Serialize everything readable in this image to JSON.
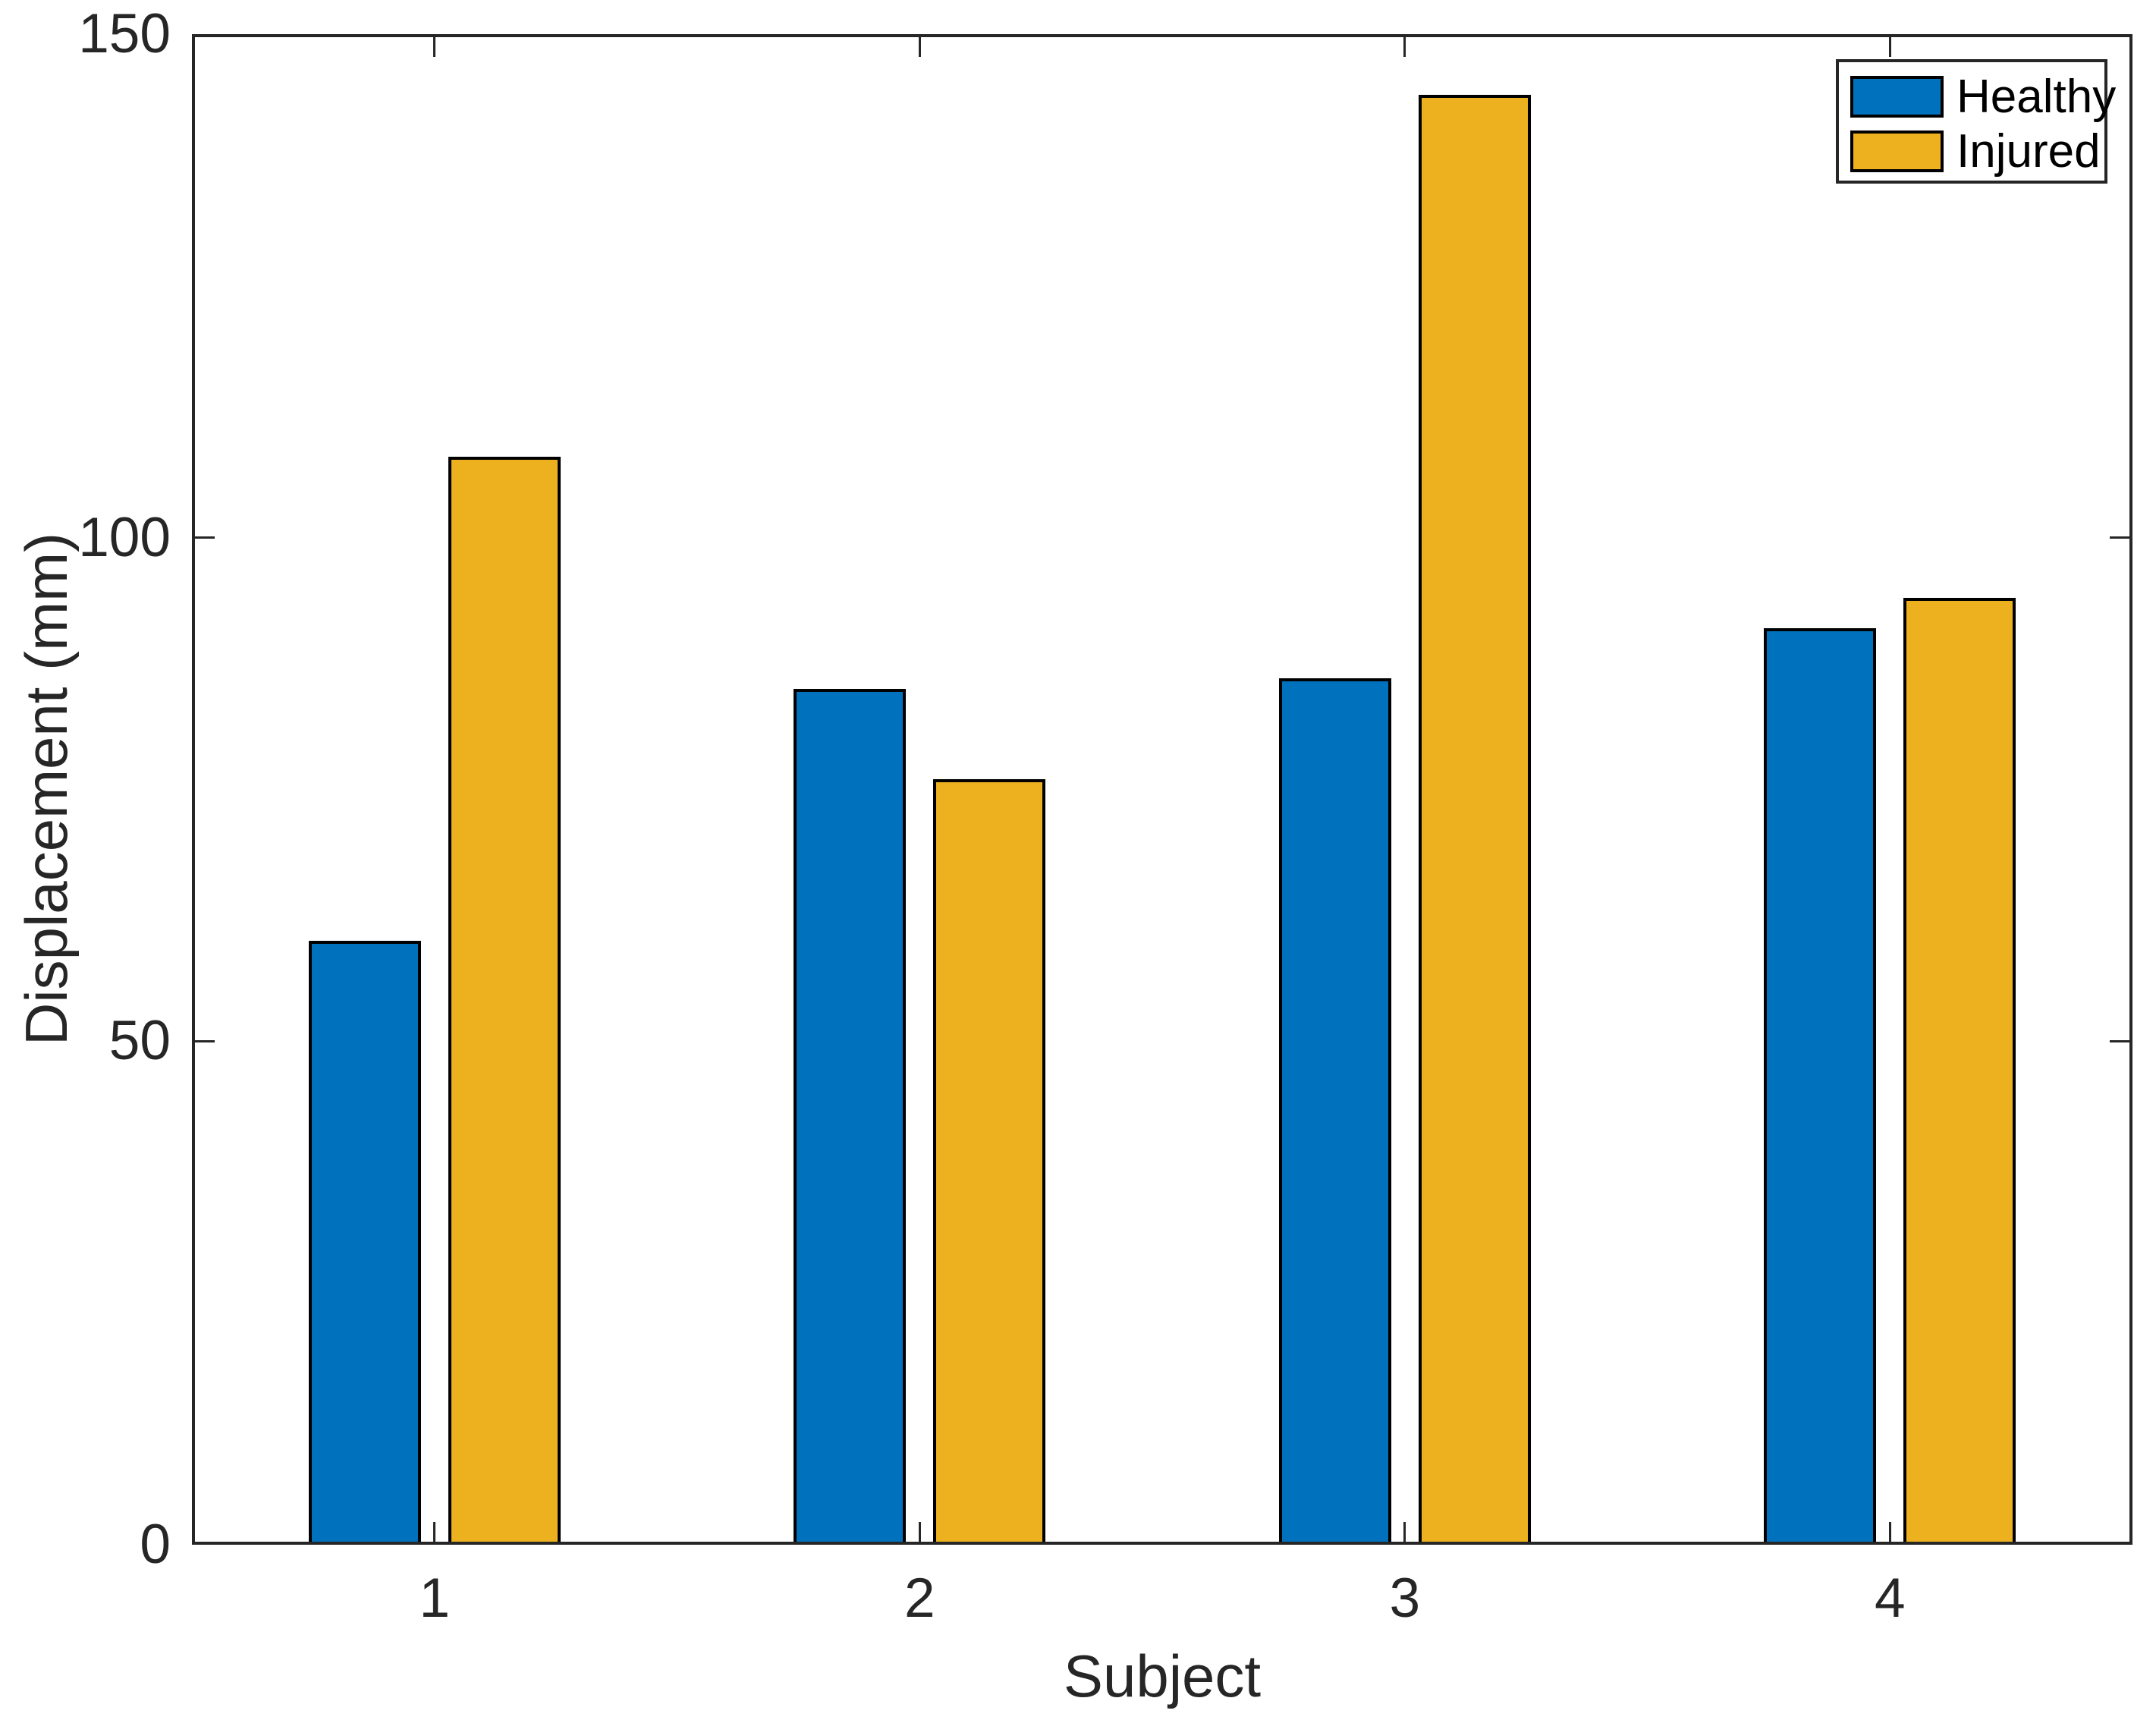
{
  "chart_data": {
    "type": "bar",
    "title": "",
    "xlabel": "Subject",
    "ylabel": "Displacement (mm)",
    "categories": [
      "1",
      "2",
      "3",
      "4"
    ],
    "series": [
      {
        "name": "Healthy",
        "color": "#0072BD",
        "values": [
          60,
          85,
          86,
          91
        ]
      },
      {
        "name": "Injured",
        "color": "#EDB120",
        "values": [
          108,
          76,
          144,
          94
        ]
      }
    ],
    "ylim": [
      0,
      150
    ],
    "yticks": [
      0,
      50,
      100,
      150
    ],
    "grid": false,
    "legend_position": "top-right",
    "bar_edge_color": "#000000",
    "axis_color": "#262626",
    "text_color": "#262626",
    "legend_text_color": "#000000",
    "background": "#FFFFFF"
  }
}
